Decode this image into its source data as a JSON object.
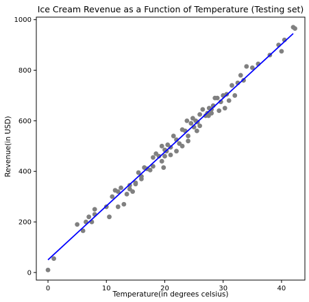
{
  "chart_data": {
    "type": "scatter",
    "title": "Ice Cream Revenue as a Function of Temperature (Testing set)",
    "xlabel": "Temperature(in degrees celsius)",
    "ylabel": "Revenue(in USD)",
    "xlim": [
      -2,
      44
    ],
    "ylim": [
      -30,
      1010
    ],
    "xticks": [
      0,
      10,
      20,
      30,
      40
    ],
    "yticks": [
      0,
      200,
      400,
      600,
      800,
      1000
    ],
    "grid": false,
    "colors": {
      "points": "#808080",
      "fit_line": "#0000ff"
    },
    "series": [
      {
        "kind": "scatter",
        "x": [
          0.0,
          1.0,
          5.0,
          6.0,
          6.5,
          7.0,
          7.5,
          8.0,
          8.0,
          10.0,
          10.5,
          11.0,
          11.5,
          12.0,
          12.5,
          13.0,
          13.5,
          14.0,
          14.5,
          15.0,
          15.0,
          15.5,
          16.0,
          16.5,
          17.0,
          17.5,
          18.0,
          18.5,
          19.0,
          19.5,
          19.8,
          20.0,
          20.3,
          20.5,
          21.0,
          21.5,
          22.0,
          22.5,
          23.0,
          23.5,
          23.8,
          24.0,
          24.5,
          24.8,
          25.0,
          25.3,
          25.6,
          26.0,
          26.5,
          27.0,
          27.3,
          27.6,
          28.0,
          28.3,
          28.6,
          29.0,
          29.3,
          29.6,
          30.0,
          30.3,
          30.6,
          31.0,
          31.5,
          32.0,
          32.5,
          33.0,
          33.5,
          34.0,
          35.0,
          36.0,
          38.0,
          39.5,
          40.0,
          40.5,
          42.0,
          42.3,
          19.5,
          21.0,
          23.0,
          25.5,
          27.5,
          28.0,
          12.0,
          14.0,
          16.0,
          18.0,
          20.0,
          22.0,
          24.0,
          26.0
        ],
        "y": [
          10,
          55,
          190,
          165,
          200,
          220,
          200,
          250,
          230,
          260,
          220,
          300,
          325,
          260,
          335,
          270,
          310,
          330,
          320,
          355,
          350,
          395,
          380,
          415,
          410,
          405,
          455,
          470,
          460,
          500,
          415,
          485,
          480,
          505,
          495,
          540,
          525,
          510,
          565,
          560,
          600,
          540,
          590,
          610,
          575,
          600,
          595,
          625,
          645,
          620,
          630,
          650,
          645,
          660,
          690,
          690,
          640,
          675,
          700,
          650,
          705,
          680,
          740,
          700,
          750,
          780,
          760,
          815,
          810,
          825,
          860,
          900,
          875,
          920,
          970,
          965,
          440,
          465,
          500,
          560,
          620,
          630,
          320,
          345,
          370,
          420,
          460,
          480,
          520,
          580
        ]
      },
      {
        "kind": "line",
        "x": [
          0,
          42
        ],
        "y": [
          50,
          945
        ]
      }
    ]
  }
}
